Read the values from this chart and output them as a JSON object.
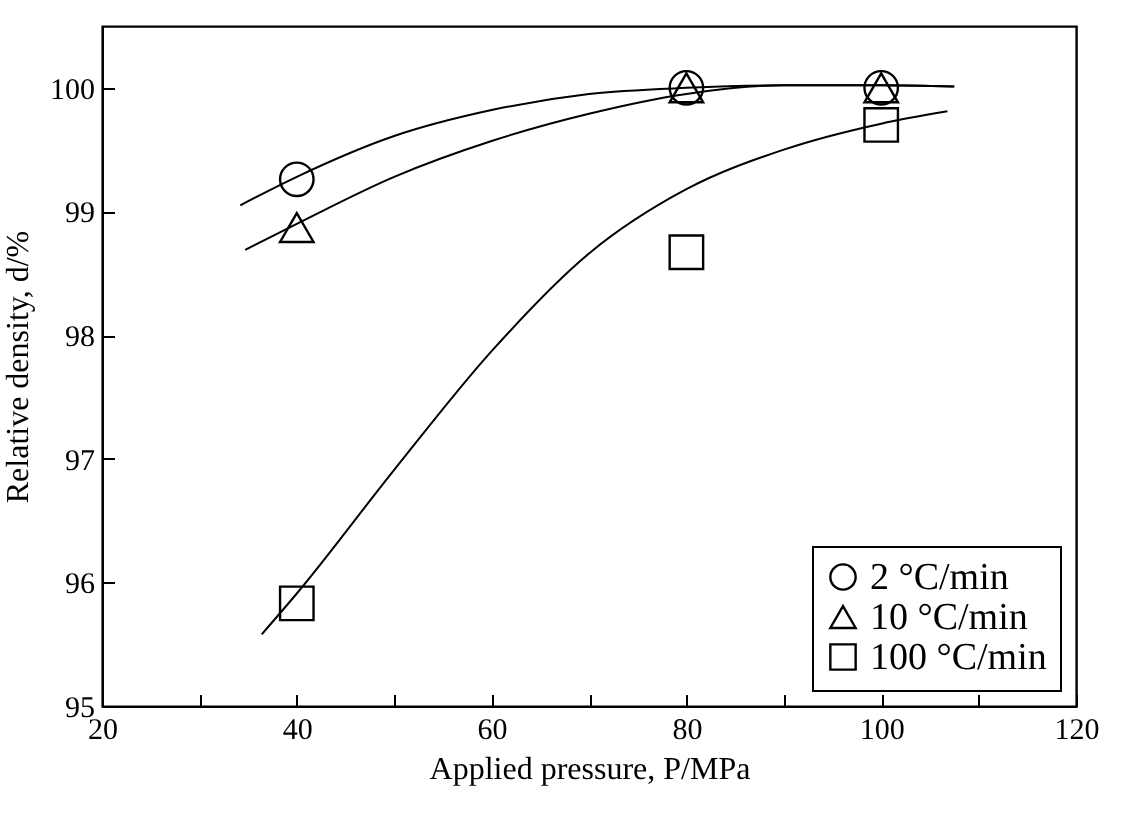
{
  "chart_data": {
    "type": "scatter",
    "xlabel": "Applied pressure, P/MPa",
    "ylabel": "Relative density, d/%",
    "xlim": [
      20,
      120
    ],
    "ylim": [
      95,
      100.5
    ],
    "xticks": [
      20,
      {
        "value": 30,
        "label": null
      },
      40,
      {
        "value": 50,
        "label": null
      },
      60,
      {
        "value": 70,
        "label": null
      },
      80,
      {
        "value": 90,
        "label": null
      },
      100,
      {
        "value": 110,
        "label": null
      },
      120
    ],
    "yticks": [
      95,
      96,
      97,
      98,
      99,
      100
    ],
    "grid": false,
    "legend": "bottom right",
    "series": [
      {
        "name": "2 °C/min",
        "marker": "circle",
        "color": "#000000",
        "x": [
          40,
          80,
          100
        ],
        "values": [
          99.26,
          100,
          100
        ]
      },
      {
        "name": "10 °C/min",
        "marker": "triangle",
        "color": "#000000",
        "x": [
          40,
          80,
          100
        ],
        "values": [
          98.87,
          100,
          100
        ]
      },
      {
        "name": "100 °C/min",
        "marker": "square",
        "color": "#000000",
        "x": [
          40,
          80,
          100
        ],
        "values": [
          95.83,
          98.67,
          99.7
        ]
      },
      {
        "type": "line",
        "marker": "none",
        "color": "#000000",
        "x": [
          34.2,
          40,
          50,
          60,
          70,
          80,
          90,
          100,
          107.5
        ],
        "values": [
          99.05,
          99.28,
          99.61,
          99.82,
          99.95,
          100,
          100.02,
          100.02,
          100.01
        ]
      },
      {
        "type": "line",
        "marker": "none",
        "color": "#000000",
        "x": [
          34.7,
          40,
          50,
          60,
          70,
          80,
          90,
          100,
          107.5
        ],
        "values": [
          98.69,
          98.9,
          99.28,
          99.57,
          99.79,
          99.95,
          100.02,
          100.02,
          100.01
        ]
      },
      {
        "type": "line",
        "marker": "none",
        "color": "#000000",
        "x": [
          36.4,
          40,
          50,
          60,
          70,
          80,
          90,
          100,
          106.8
        ],
        "values": [
          95.58,
          95.91,
          96.91,
          97.87,
          98.66,
          99.18,
          99.5,
          99.71,
          99.81
        ]
      }
    ]
  }
}
